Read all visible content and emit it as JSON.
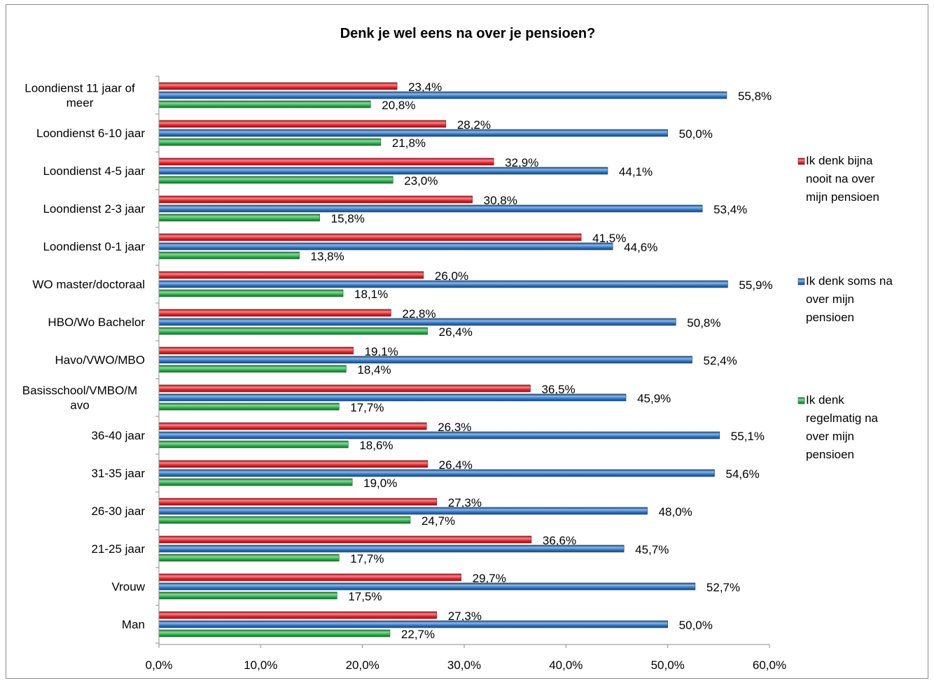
{
  "chart_data": {
    "type": "bar",
    "orientation": "horizontal",
    "title": "Denk je wel eens na over je pensioen?",
    "xlim": [
      0,
      60
    ],
    "x_ticks": [
      "0,0%",
      "10,0%",
      "20,0%",
      "30,0%",
      "40,0%",
      "50,0%",
      "60,0%"
    ],
    "categories": [
      [
        "Loondienst 11 jaar of",
        "meer"
      ],
      [
        "Loondienst 6-10 jaar"
      ],
      [
        "Loondienst 4-5 jaar"
      ],
      [
        "Loondienst 2-3 jaar"
      ],
      [
        "Loondienst 0-1 jaar"
      ],
      [
        "WO master/doctoraal"
      ],
      [
        "HBO/Wo Bachelor"
      ],
      [
        "Havo/VWO/MBO"
      ],
      [
        "Basisschool/VMBO/M",
        "avo"
      ],
      [
        "36-40 jaar"
      ],
      [
        "31-35 jaar"
      ],
      [
        "26-30 jaar"
      ],
      [
        "21-25 jaar"
      ],
      [
        "Vrouw"
      ],
      [
        "Man"
      ]
    ],
    "series": [
      {
        "name": [
          "Ik denk bijna",
          "nooit na over",
          "mijn pensioen"
        ],
        "color": "#e8252b",
        "values": [
          23.4,
          28.2,
          32.9,
          30.8,
          41.5,
          26.0,
          22.8,
          19.1,
          36.5,
          26.3,
          26.4,
          27.3,
          36.6,
          29.7,
          27.3
        ],
        "labels": [
          "23,4%",
          "28,2%",
          "32,9%",
          "30,8%",
          "41,5%",
          "26,0%",
          "22,8%",
          "19,1%",
          "36,5%",
          "26,3%",
          "26,4%",
          "27,3%",
          "36,6%",
          "29,7%",
          "27,3%"
        ]
      },
      {
        "name": [
          "Ik denk soms na",
          "over mijn",
          "pensioen"
        ],
        "color": "#2f78c8",
        "values": [
          55.8,
          50.0,
          44.1,
          53.4,
          44.6,
          55.9,
          50.8,
          52.4,
          45.9,
          55.1,
          54.6,
          48.0,
          45.7,
          52.7,
          50.0
        ],
        "labels": [
          "55,8%",
          "50,0%",
          "44,1%",
          "53,4%",
          "44,6%",
          "55,9%",
          "50,8%",
          "52,4%",
          "45,9%",
          "55,1%",
          "54,6%",
          "48,0%",
          "45,7%",
          "52,7%",
          "50,0%"
        ]
      },
      {
        "name": [
          "Ik denk",
          "regelmatig na",
          "over  mijn",
          "pensioen"
        ],
        "color": "#2db34c",
        "values": [
          20.8,
          21.8,
          23.0,
          15.8,
          13.8,
          18.1,
          26.4,
          18.4,
          17.7,
          18.6,
          19.0,
          24.7,
          17.7,
          17.5,
          22.7
        ],
        "labels": [
          "20,8%",
          "21,8%",
          "23,0%",
          "15,8%",
          "13,8%",
          "18,1%",
          "26,4%",
          "18,4%",
          "17,7%",
          "18,6%",
          "19,0%",
          "24,7%",
          "17,7%",
          "17,5%",
          "22,7%"
        ]
      }
    ],
    "legend_position": "right",
    "grid": false
  }
}
